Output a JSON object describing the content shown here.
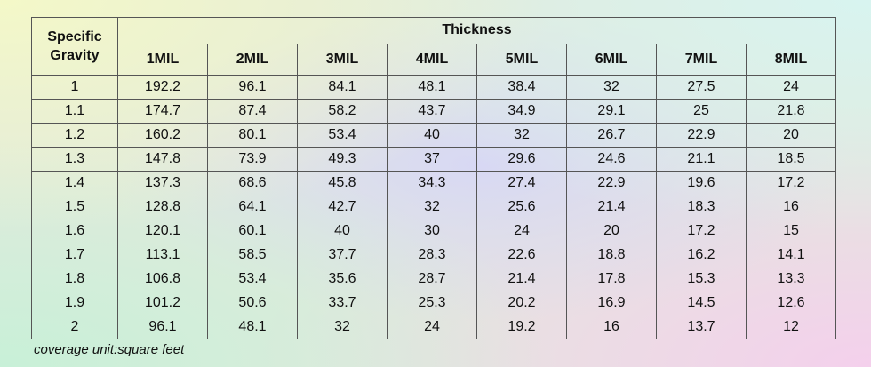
{
  "table": {
    "corner_header_line1": "Specific",
    "corner_header_line2": "Gravity",
    "group_header": "Thickness",
    "columns": [
      "1MIL",
      "2MIL",
      "3MIL",
      "4MIL",
      "5MIL",
      "6MIL",
      "7MIL",
      "8MIL"
    ],
    "rows": [
      {
        "sg": "1",
        "values": [
          "192.2",
          "96.1",
          "84.1",
          "48.1",
          "38.4",
          "32",
          "27.5",
          "24"
        ]
      },
      {
        "sg": "1.1",
        "values": [
          "174.7",
          "87.4",
          "58.2",
          "43.7",
          "34.9",
          "29.1",
          "25",
          "21.8"
        ]
      },
      {
        "sg": "1.2",
        "values": [
          "160.2",
          "80.1",
          "53.4",
          "40",
          "32",
          "26.7",
          "22.9",
          "20"
        ]
      },
      {
        "sg": "1.3",
        "values": [
          "147.8",
          "73.9",
          "49.3",
          "37",
          "29.6",
          "24.6",
          "21.1",
          "18.5"
        ]
      },
      {
        "sg": "1.4",
        "values": [
          "137.3",
          "68.6",
          "45.8",
          "34.3",
          "27.4",
          "22.9",
          "19.6",
          "17.2"
        ]
      },
      {
        "sg": "1.5",
        "values": [
          "128.8",
          "64.1",
          "42.7",
          "32",
          "25.6",
          "21.4",
          "18.3",
          "16"
        ]
      },
      {
        "sg": "1.6",
        "values": [
          "120.1",
          "60.1",
          "40",
          "30",
          "24",
          "20",
          "17.2",
          "15"
        ]
      },
      {
        "sg": "1.7",
        "values": [
          "113.1",
          "58.5",
          "37.7",
          "28.3",
          "22.6",
          "18.8",
          "16.2",
          "14.1"
        ]
      },
      {
        "sg": "1.8",
        "values": [
          "106.8",
          "53.4",
          "35.6",
          "28.7",
          "21.4",
          "17.8",
          "15.3",
          "13.3"
        ]
      },
      {
        "sg": "1.9",
        "values": [
          "101.2",
          "50.6",
          "33.7",
          "25.3",
          "20.2",
          "16.9",
          "14.5",
          "12.6"
        ]
      },
      {
        "sg": "2",
        "values": [
          "96.1",
          "48.1",
          "32",
          "24",
          "19.2",
          "16",
          "13.7",
          "12"
        ]
      }
    ]
  },
  "note": "coverage unit:square feet"
}
